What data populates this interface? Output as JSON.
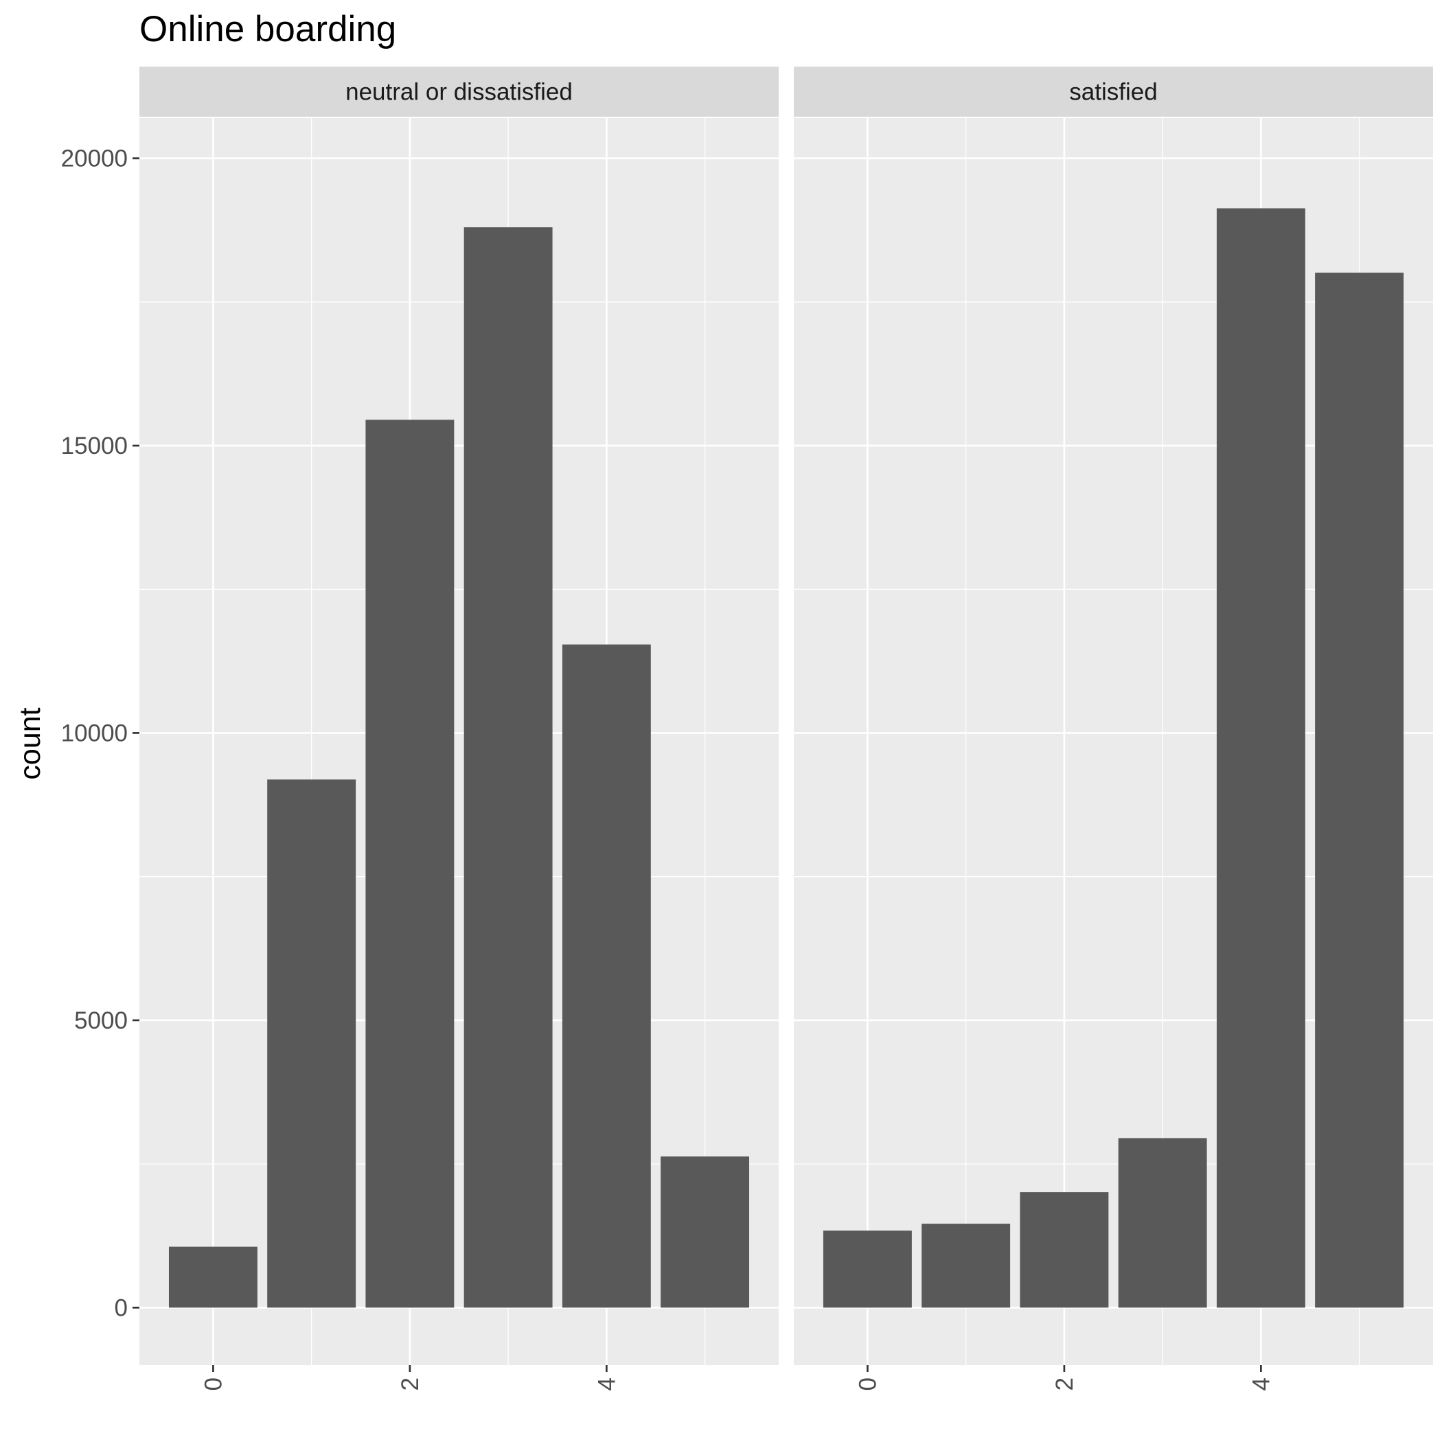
{
  "chart_data": {
    "type": "bar",
    "title": "Online boarding",
    "xlabel": "",
    "ylabel": "count",
    "ylim": [
      -1000,
      20700
    ],
    "y_ticks": [
      0,
      5000,
      10000,
      15000,
      20000
    ],
    "y_tick_labels": [
      "0",
      "5000",
      "10000",
      "15000",
      "20000"
    ],
    "x_ticks": [
      0,
      2,
      4
    ],
    "x_tick_labels": [
      "0",
      "2",
      "4"
    ],
    "xlim": [
      -0.75,
      5.75
    ],
    "grid": true,
    "categories": [
      0,
      1,
      2,
      3,
      4,
      5
    ],
    "panels": [
      {
        "label": "neutral or dissatisfied",
        "values": [
          1060,
          9190,
          15450,
          18800,
          11540,
          2630
        ]
      },
      {
        "label": "satisfied",
        "values": [
          1340,
          1460,
          2010,
          2950,
          19130,
          18010
        ]
      }
    ]
  },
  "colors": {
    "panel_bg": "#EBEBEB",
    "strip_bg": "#D9D9D9",
    "grid": "#FFFFFF",
    "bar": "#595959",
    "tick": "#333333"
  }
}
